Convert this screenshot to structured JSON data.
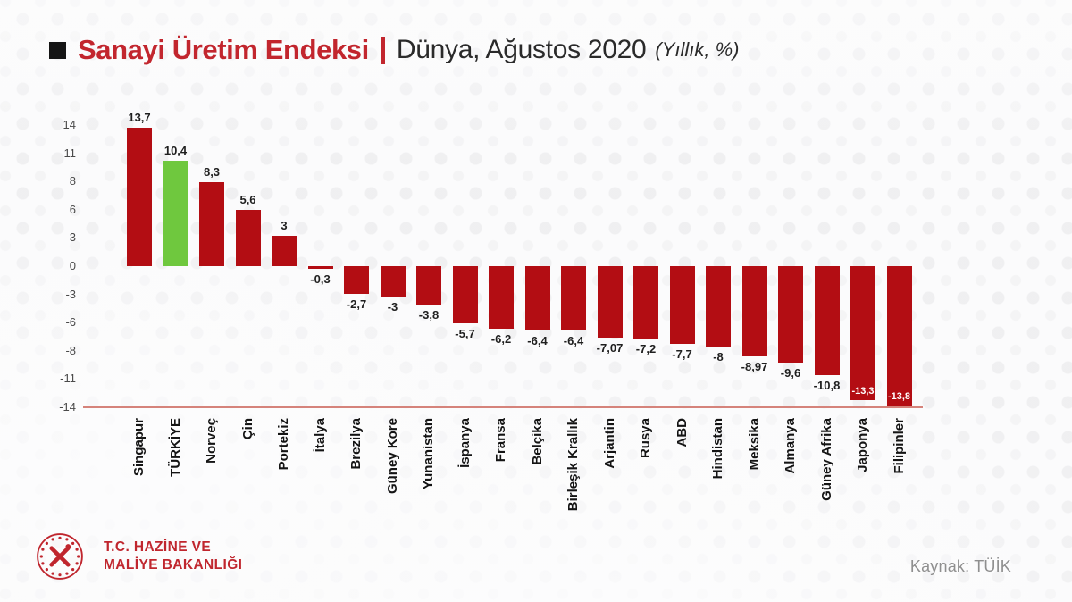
{
  "title": {
    "bullet": "black-square",
    "main": "Sanayi Üretim Endeksi",
    "separator": "|",
    "subtitle": "Dünya, Ağustos 2020",
    "note": "(Yıllık, %)"
  },
  "chart_data": {
    "type": "bar",
    "title": "Sanayi Üretim Endeksi | Dünya, Ağustos 2020 (Yıllık, %)",
    "categories": [
      "Singapur",
      "TÜRKİYE",
      "Norveç",
      "Çin",
      "Portekiz",
      "İtalya",
      "Brezilya",
      "Güney Kore",
      "Yunanistan",
      "İspanya",
      "Fransa",
      "Belçika",
      "Birleşik Krallık",
      "Arjantin",
      "Rusya",
      "ABD",
      "Hindistan",
      "Meksika",
      "Almanya",
      "Güney Afrika",
      "Japonya",
      "Filipinler"
    ],
    "values": [
      13.7,
      10.4,
      8.3,
      5.6,
      3,
      -0.3,
      -2.7,
      -3,
      -3.8,
      -5.7,
      -6.2,
      -6.4,
      -6.4,
      -7.07,
      -7.2,
      -7.7,
      -8,
      -8.97,
      -9.6,
      -10.8,
      -13.3,
      -13.8
    ],
    "value_labels": [
      "13,7",
      "10,4",
      "8,3",
      "5,6",
      "3",
      "-0,3",
      "-2,7",
      "-3",
      "-3,8",
      "-5,7",
      "-6,2",
      "-6,4",
      "-6,4",
      "-7,07",
      "-7,2",
      "-7,7",
      "-8",
      "-8,97",
      "-9,6",
      "-10,8",
      "-13,3",
      "-13,8"
    ],
    "inside_label_categories": [
      "Japonya",
      "Filipinler"
    ],
    "bar_color": "#b30d13",
    "highlight": {
      "category": "TÜRKİYE",
      "color": "#6fc83e"
    },
    "ylim": [
      -14,
      14
    ],
    "yticks": [
      14,
      11,
      8,
      6,
      3,
      0,
      -3,
      -6,
      -8,
      -11,
      -14
    ],
    "ytick_labels": [
      "14",
      "11",
      "8",
      "6",
      "3",
      "0",
      "-3",
      "-6",
      "-8",
      "-11",
      "-14"
    ],
    "grid": false,
    "legend": false,
    "baseline_color": "#d5837b",
    "xlabel": "",
    "ylabel": ""
  },
  "footer": {
    "ministry_line1": "T.C. HAZİNE VE",
    "ministry_line2": "MALİYE BAKANLIĞI",
    "source": "Kaynak: TÜİK"
  },
  "colors": {
    "title_red": "#c2262e",
    "bar_red": "#b30d13",
    "turkey_green": "#6fc83e",
    "axis_line": "#d5837b",
    "source_gray": "#8f8f8f"
  }
}
